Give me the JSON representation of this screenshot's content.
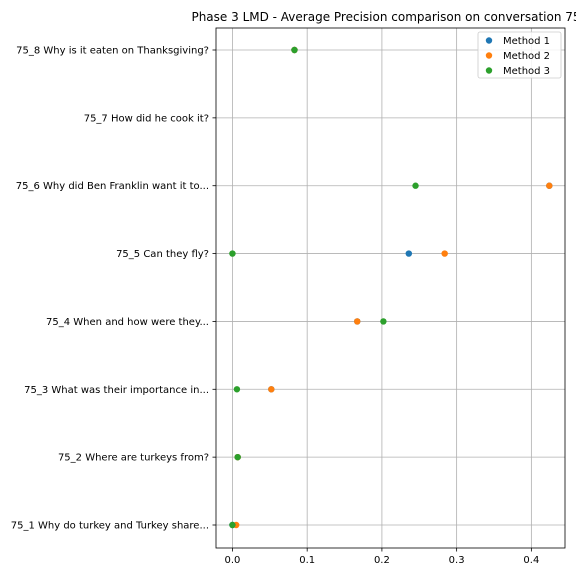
{
  "chart_data": {
    "type": "scatter",
    "title": "Phase 3 LMD - Average Precision comparison on conversation 75",
    "xlabel": "",
    "ylabel": "",
    "xlim": [
      -0.022,
      0.445
    ],
    "x_ticks": [
      0.0,
      0.1,
      0.2,
      0.3,
      0.4
    ],
    "x_tick_labels": [
      "0.0",
      "0.1",
      "0.2",
      "0.3",
      "0.4"
    ],
    "categories": [
      "75_1 Why do turkey and Turkey share...",
      "75_2 Where are turkeys from?",
      "75_3 What was their importance in...",
      "75_4 When and how were they...",
      "75_5 Can they fly?",
      "75_6 Why did Ben Franklin want it to...",
      "75_7 How did he cook it?",
      "75_8 Why is it eaten on Thanksgiving?"
    ],
    "grid": true,
    "legend_position": "top-right",
    "series": [
      {
        "name": "Method 1",
        "color": "#1f77b4",
        "values": [
          0.0,
          0.007,
          0.052,
          0.167,
          0.236,
          0.424,
          null,
          0.083
        ]
      },
      {
        "name": "Method 2",
        "color": "#ff7f0e",
        "values": [
          0.005,
          0.007,
          0.052,
          0.167,
          0.284,
          0.424,
          null,
          0.083
        ]
      },
      {
        "name": "Method 3",
        "color": "#2ca02c",
        "values": [
          0.0,
          0.007,
          0.006,
          0.202,
          0.0,
          0.245,
          null,
          0.083
        ]
      }
    ]
  }
}
